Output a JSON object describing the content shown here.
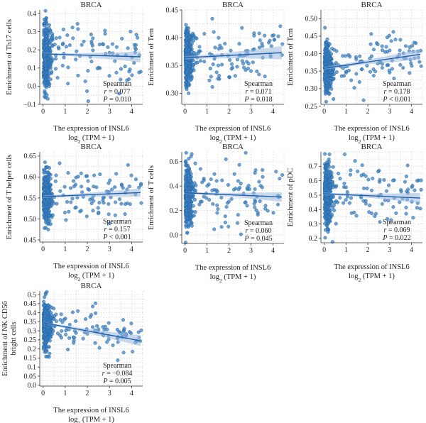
{
  "chart_data": [
    {
      "type": "scatter",
      "title": "BRCA",
      "xlabel": "The expression of INSL6",
      "xunit": "log2 (TPM + 1)",
      "ylabel": [
        "Enrichment of Th17 cells"
      ],
      "xlim": [
        -0.15,
        4.5
      ],
      "ylim": [
        -0.1,
        0.42
      ],
      "xticks": [
        0,
        1,
        2,
        3,
        4
      ],
      "yticks": [
        -0.1,
        0.0,
        0.1,
        0.2,
        0.3,
        0.4
      ],
      "ytick_labels": [
        "−0.1",
        "0.0",
        "0.1",
        "0.2",
        "0.3",
        "0.4"
      ],
      "regression": {
        "x": [
          0,
          4.4
        ],
        "y": [
          0.178,
          0.162
        ],
        "ci": [
          0.006,
          0.03
        ]
      },
      "cluster": {
        "cx": 0.18,
        "cy": 0.17,
        "sd": 0.09
      },
      "stats": {
        "method": "Spearman",
        "r_label": "r",
        "r": "= 0.077",
        "p_label": "P",
        "p": "= 0.010"
      },
      "grid": true
    },
    {
      "type": "scatter",
      "title": "BRCA",
      "xlabel": "The expression of INSL6",
      "xunit": "log2 (TPM + 1)",
      "ylabel": [
        "Enrichment of Tem"
      ],
      "xlim": [
        -0.15,
        4.5
      ],
      "ylim": [
        0.28,
        0.45
      ],
      "xticks": [
        0,
        1,
        2,
        3,
        4
      ],
      "yticks": [
        0.3,
        0.35,
        0.4,
        0.45
      ],
      "ytick_labels": [
        "0.30",
        "0.35",
        "0.40",
        "0.45"
      ],
      "regression": {
        "x": [
          0,
          4.4
        ],
        "y": [
          0.364,
          0.373
        ],
        "ci": [
          0.003,
          0.012
        ]
      },
      "cluster": {
        "cx": 0.18,
        "cy": 0.365,
        "sd": 0.025
      },
      "stats": {
        "method": "Spearman",
        "r_label": "r",
        "r": "= 0.071",
        "p_label": "P",
        "p": "= 0.018"
      },
      "grid": true
    },
    {
      "type": "scatter",
      "title": "BRCA",
      "xlabel": "The expression of INSL6",
      "xunit": "log2 (TPM + 1)",
      "ylabel": [
        "Enrichment of Tcm"
      ],
      "xlim": [
        -0.15,
        4.5
      ],
      "ylim": [
        0.255,
        0.525
      ],
      "xticks": [
        0,
        1,
        2,
        3,
        4
      ],
      "yticks": [
        0.25,
        0.3,
        0.35,
        0.4,
        0.45,
        0.5
      ],
      "ytick_labels": [
        "0.25",
        "0.30",
        "0.35",
        "0.40",
        "0.45",
        "0.50"
      ],
      "regression": {
        "x": [
          0,
          4.4
        ],
        "y": [
          0.358,
          0.398
        ],
        "ci": [
          0.004,
          0.015
        ]
      },
      "cluster": {
        "cx": 0.18,
        "cy": 0.36,
        "sd": 0.035
      },
      "stats": {
        "method": "Spearman",
        "r_label": "r",
        "r": "= 0.178",
        "p_label": "P",
        "p": "< 0.001"
      },
      "grid": true
    },
    {
      "type": "scatter",
      "title": "BRCA",
      "xlabel": "The expression of INSL6",
      "xunit": "log2 (TPM + 1)",
      "ylabel": [
        "Enrichment of T helper cells"
      ],
      "xlim": [
        -0.15,
        4.5
      ],
      "ylim": [
        0.445,
        0.66
      ],
      "xticks": [
        0,
        1,
        2,
        3,
        4
      ],
      "yticks": [
        0.45,
        0.5,
        0.55,
        0.6,
        0.65
      ],
      "ytick_labels": [
        "0.45",
        "0.50",
        "0.55",
        "0.60",
        "0.65"
      ],
      "regression": {
        "x": [
          0,
          4.4
        ],
        "y": [
          0.553,
          0.563
        ],
        "ci": [
          0.003,
          0.01
        ]
      },
      "cluster": {
        "cx": 0.18,
        "cy": 0.555,
        "sd": 0.03
      },
      "stats": {
        "method": "Spearman",
        "r_label": "r",
        "r": "= 0.157",
        "p_label": "P",
        "p": "< 0.001"
      },
      "grid": true
    },
    {
      "type": "scatter",
      "title": "BRCA",
      "xlabel": "The expression of INSL6",
      "xunit": "log2 (TPM + 1)",
      "ylabel": [
        "Enrichment of T cells"
      ],
      "xlim": [
        -0.15,
        4.5
      ],
      "ylim": [
        -0.07,
        0.68
      ],
      "xticks": [
        0,
        1,
        2,
        3,
        4
      ],
      "yticks": [
        0.0,
        0.2,
        0.4,
        0.6
      ],
      "ytick_labels": [
        "0.0",
        "0.2",
        "0.4",
        "0.6"
      ],
      "regression": {
        "x": [
          0,
          4.4
        ],
        "y": [
          0.345,
          0.31
        ],
        "ci": [
          0.008,
          0.04
        ]
      },
      "cluster": {
        "cx": 0.18,
        "cy": 0.33,
        "sd": 0.13
      },
      "stats": {
        "method": "Spearman",
        "r_label": "r",
        "r": "= 0.060",
        "p_label": "P",
        "p": "= 0.045"
      },
      "grid": true
    },
    {
      "type": "scatter",
      "title": "BRCA",
      "xlabel": "The expression of INSL6",
      "xunit": "log2 (TPM + 1)",
      "ylabel": [
        "Enrichment of pDC"
      ],
      "xlim": [
        -0.15,
        4.5
      ],
      "ylim": [
        0.17,
        0.8
      ],
      "xticks": [
        0,
        1,
        2,
        3,
        4
      ],
      "yticks": [
        0.2,
        0.3,
        0.4,
        0.5,
        0.6,
        0.7
      ],
      "ytick_labels": [
        "0.2",
        "0.3",
        "0.4",
        "0.5",
        "0.6",
        "0.7"
      ],
      "regression": {
        "x": [
          0,
          4.4
        ],
        "y": [
          0.51,
          0.48
        ],
        "ci": [
          0.008,
          0.035
        ]
      },
      "cluster": {
        "cx": 0.18,
        "cy": 0.5,
        "sd": 0.11
      },
      "stats": {
        "method": "Spearman",
        "r_label": "r",
        "r": "= 0.069",
        "p_label": "P",
        "p": "= 0.022"
      },
      "grid": true
    },
    {
      "type": "scatter",
      "title": "BRCA",
      "xlabel": "The expression of INSL6",
      "xunit": "log2 (TPM + 1)",
      "ylabel": [
        "Enrichment of NK CD56",
        "bright cells"
      ],
      "xlim": [
        -0.15,
        4.5
      ],
      "ylim": [
        -0.005,
        0.52
      ],
      "xticks": [
        0,
        1,
        2,
        3,
        4
      ],
      "yticks": [
        0.0,
        0.05,
        0.1,
        0.15,
        0.2,
        0.25,
        0.3,
        0.35,
        0.4,
        0.45,
        0.5
      ],
      "ytick_labels": [
        "0.0",
        "0.05",
        "0.1",
        "0.15",
        "0.2",
        "0.25",
        "0.3",
        "0.35",
        "0.4",
        "0.45",
        "0.5"
      ],
      "regression": {
        "x": [
          0,
          4.4
        ],
        "y": [
          0.345,
          0.245
        ],
        "ci": [
          0.006,
          0.03
        ]
      },
      "cluster": {
        "cx": 0.18,
        "cy": 0.33,
        "sd": 0.06
      },
      "stats": {
        "method": "Spearman",
        "r_label": "r",
        "r": "= −0.084",
        "p_label": "P",
        "p": "= 0.005"
      },
      "grid": true
    }
  ],
  "colors": {
    "point_fill": "#3a7fc0",
    "point_stroke": "#1f5f9e",
    "regression_line": "#1f5fa8",
    "ci_band": "#9ab9de",
    "grid": "#c8c8c8",
    "axis": "#333333"
  }
}
